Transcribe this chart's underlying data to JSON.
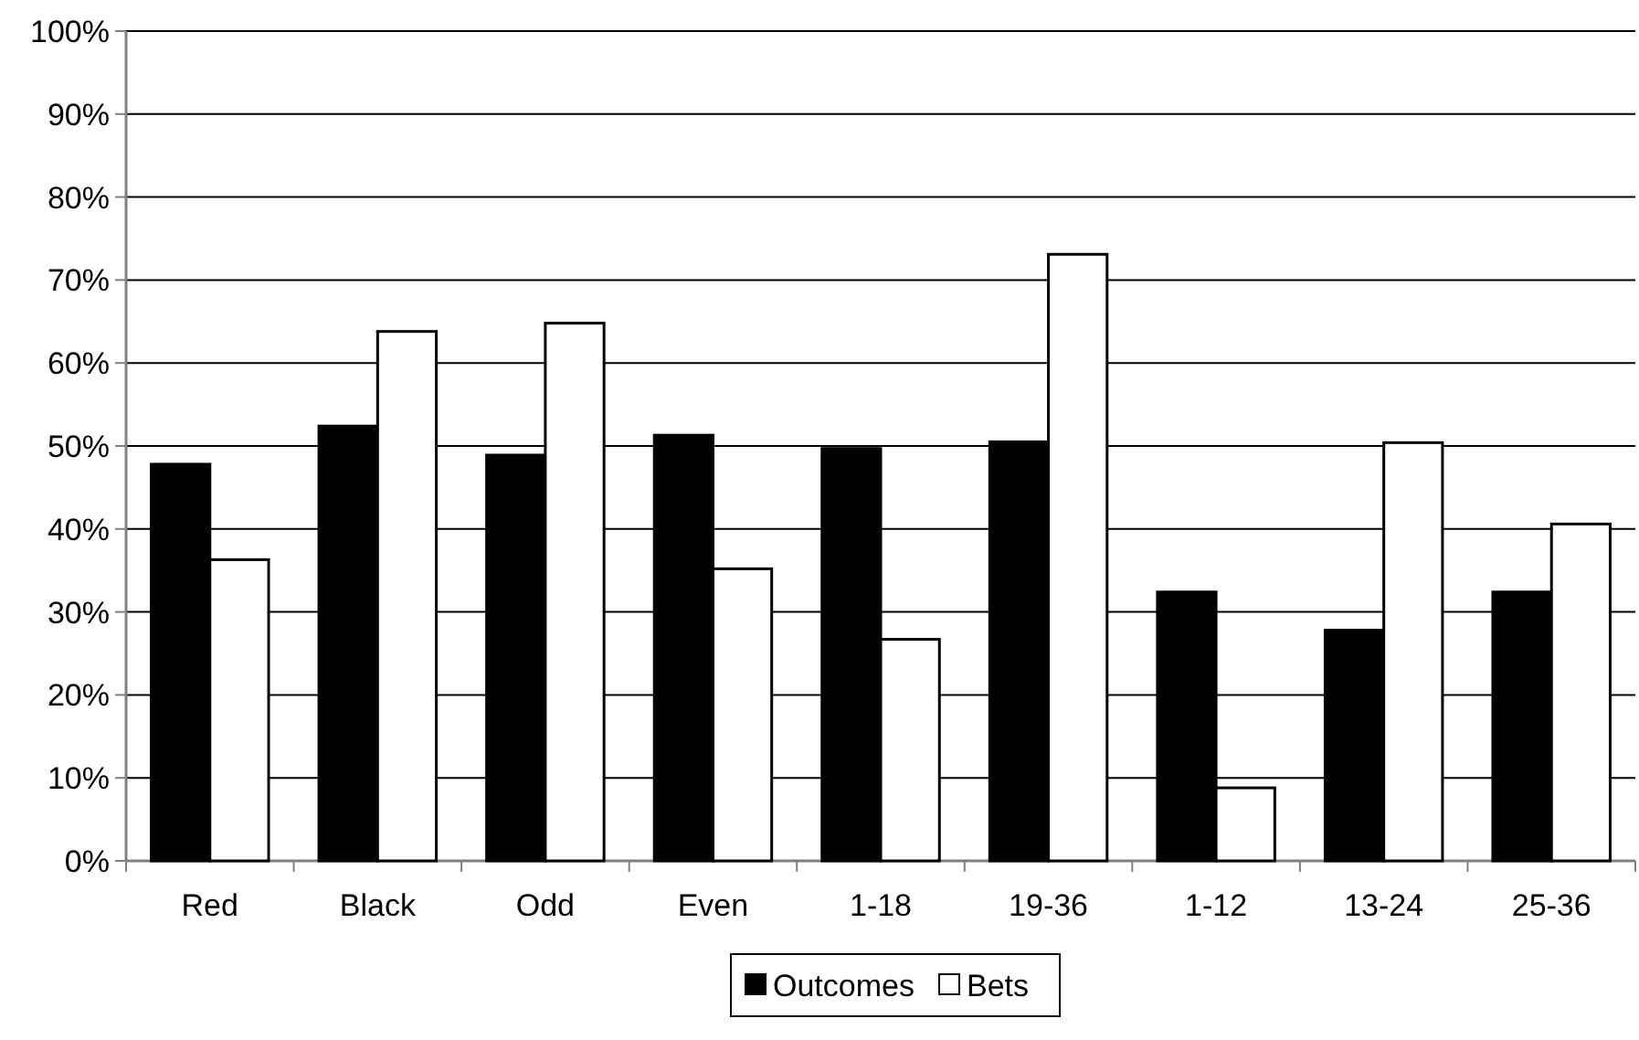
{
  "chart_data": {
    "type": "bar",
    "categories": [
      "Red",
      "Black",
      "Odd",
      "Even",
      "1-18",
      "19-36",
      "1-12",
      "13-24",
      "25-36"
    ],
    "series": [
      {
        "name": "Outcomes",
        "color": "#000000",
        "values": [
          47.8,
          52.4,
          48.9,
          51.3,
          49.7,
          50.5,
          32.4,
          27.8,
          32.4
        ]
      },
      {
        "name": "Bets",
        "color": "#ffffff",
        "values": [
          36.3,
          63.8,
          64.8,
          35.2,
          26.7,
          73.1,
          8.8,
          50.4,
          40.6
        ]
      }
    ],
    "ylim": [
      0,
      100
    ],
    "yticks": [
      {
        "value": 0,
        "label": "0%"
      },
      {
        "value": 10,
        "label": "10%"
      },
      {
        "value": 20,
        "label": "20%"
      },
      {
        "value": 30,
        "label": "30%"
      },
      {
        "value": 40,
        "label": "40%"
      },
      {
        "value": 50,
        "label": "50%"
      },
      {
        "value": 60,
        "label": "60%"
      },
      {
        "value": 70,
        "label": "70%"
      },
      {
        "value": 80,
        "label": "80%"
      },
      {
        "value": 90,
        "label": "90%"
      },
      {
        "value": 100,
        "label": "100%"
      }
    ],
    "grid": "y",
    "legend": "bottom"
  }
}
